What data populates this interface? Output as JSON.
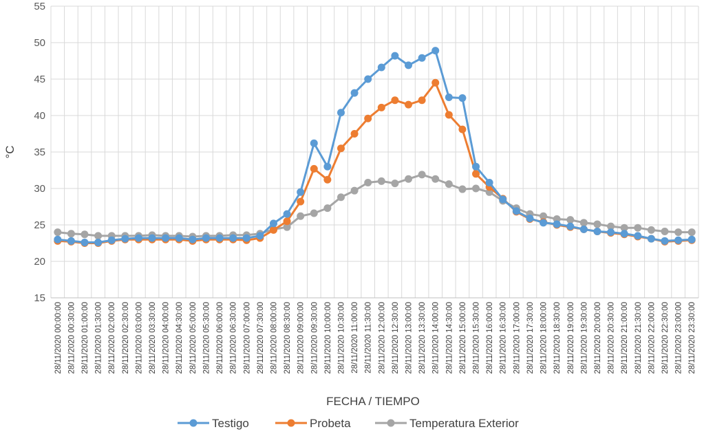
{
  "chart_data": {
    "type": "line",
    "xlabel": "FECHA / TIEMPO",
    "ylabel": "°C",
    "ylim": [
      15,
      55
    ],
    "yticks": [
      15,
      20,
      25,
      30,
      35,
      40,
      45,
      50,
      55
    ],
    "grid": true,
    "legend_position": "bottom",
    "categories": [
      "28/11/2020 00:00:00",
      "28/11/2020 00:30:00",
      "28/11/2020 01:00:00",
      "28/11/2020 01:30:00",
      "28/11/2020 02:00:00",
      "28/11/2020 02:30:00",
      "28/11/2020 03:00:00",
      "28/11/2020 03:30:00",
      "28/11/2020 04:00:00",
      "28/11/2020 04:30:00",
      "28/11/2020 05:00:00",
      "28/11/2020 05:30:00",
      "28/11/2020 06:00:00",
      "28/11/2020 06:30:00",
      "28/11/2020 07:00:00",
      "28/11/2020 07:30:00",
      "28/11/2020 08:00:00",
      "28/11/2020 08:30:00",
      "28/11/2020 09:00:00",
      "28/11/2020 09:30:00",
      "28/11/2020 10:00:00",
      "28/11/2020 10:30:00",
      "28/11/2020 11:00:00",
      "28/11/2020 11:30:00",
      "28/11/2020 12:00:00",
      "28/11/2020 12:30:00",
      "28/11/2020 13:00:00",
      "28/11/2020 13:30:00",
      "28/11/2020 14:00:00",
      "28/11/2020 14:30:00",
      "28/11/2020 15:00:00",
      "28/11/2020 15:30:00",
      "28/11/2020 16:00:00",
      "28/11/2020 16:30:00",
      "28/11/2020 17:00:00",
      "28/11/2020 17:30:00",
      "28/11/2020 18:00:00",
      "28/11/2020 18:30:00",
      "28/11/2020 19:00:00",
      "28/11/2020 19:30:00",
      "28/11/2020 20:00:00",
      "28/11/2020 20:30:00",
      "28/11/2020 21:00:00",
      "28/11/2020 21:30:00",
      "28/11/2020 22:00:00",
      "28/11/2020 22:30:00",
      "28/11/2020 23:00:00",
      "28/11/2020 23:30:00"
    ],
    "series": [
      {
        "name": "Testigo",
        "color": "#5B9BD5",
        "values": [
          23.0,
          22.8,
          22.6,
          22.6,
          22.9,
          23.1,
          23.2,
          23.2,
          23.2,
          23.2,
          23.0,
          23.2,
          23.2,
          23.2,
          23.2,
          23.5,
          25.2,
          26.5,
          29.5,
          36.2,
          33.0,
          40.4,
          43.1,
          45.0,
          46.6,
          48.2,
          46.9,
          47.9,
          48.9,
          42.5,
          42.4,
          33.0,
          30.8,
          28.5,
          26.9,
          25.9,
          25.3,
          25.1,
          24.8,
          24.4,
          24.1,
          24.0,
          23.8,
          23.5,
          23.1,
          22.8,
          22.9,
          23.0
        ]
      },
      {
        "name": "Probeta",
        "color": "#ED7D31",
        "values": [
          22.8,
          22.7,
          22.5,
          22.5,
          22.8,
          23.0,
          23.0,
          23.0,
          23.0,
          23.0,
          22.8,
          23.0,
          23.0,
          23.0,
          22.9,
          23.2,
          24.3,
          25.5,
          28.2,
          32.7,
          31.2,
          35.5,
          37.5,
          39.6,
          41.1,
          42.1,
          41.5,
          42.1,
          44.5,
          40.1,
          38.1,
          32.0,
          30.2,
          28.6,
          26.8,
          25.8,
          25.4,
          25.0,
          24.7,
          24.4,
          24.1,
          23.9,
          23.7,
          23.4,
          23.1,
          22.7,
          22.8,
          22.9
        ]
      },
      {
        "name": "Temperatura Exterior",
        "color": "#A5A5A5",
        "values": [
          24.0,
          23.8,
          23.7,
          23.5,
          23.5,
          23.5,
          23.5,
          23.6,
          23.5,
          23.5,
          23.4,
          23.5,
          23.5,
          23.6,
          23.6,
          23.8,
          24.4,
          24.7,
          26.2,
          26.6,
          27.3,
          28.8,
          29.7,
          30.8,
          31.0,
          30.7,
          31.3,
          31.9,
          31.3,
          30.6,
          29.9,
          30.0,
          29.5,
          28.3,
          27.3,
          26.5,
          26.2,
          25.8,
          25.7,
          25.3,
          25.1,
          24.8,
          24.6,
          24.6,
          24.3,
          24.1,
          24.0,
          24.0
        ]
      }
    ]
  }
}
